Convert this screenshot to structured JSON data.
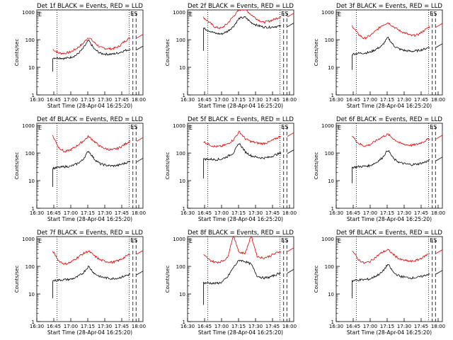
{
  "figure": {
    "xlabel": "Start Time (28-Apr-04 16:25:20)",
    "ylabel": "Counts/sec"
  },
  "chart_data": [
    {
      "type": "line",
      "title": "Det 1f BLACK = Events, RED = LLD",
      "x_ticks": [
        "16:30",
        "16:45",
        "17:00",
        "17:15",
        "17:30",
        "17:45",
        "18:00"
      ],
      "y_ticks": [
        "1",
        "10",
        "100",
        "1000"
      ],
      "yscale": "log",
      "ylim": [
        1,
        1200
      ],
      "markers": [
        "E",
        "ES"
      ],
      "series": [
        {
          "color": "#e00000",
          "values": [
            45,
            33,
            32,
            36,
            48,
            70,
            125,
            78,
            52,
            48,
            47,
            55,
            85,
            120
          ]
        },
        {
          "color": "#000000",
          "values": [
            22,
            22,
            21,
            23,
            28,
            45,
            95,
            45,
            32,
            30,
            30,
            33,
            40,
            45
          ],
          "start_drop": 7
        }
      ]
    },
    {
      "type": "line",
      "title": "Det 2f BLACK = Events, RED = LLD",
      "x_ticks": [
        "16:30",
        "16:45",
        "17:00",
        "17:15",
        "17:30",
        "17:45",
        "18:00"
      ],
      "y_ticks": [
        "1",
        "10",
        "100",
        "1000"
      ],
      "yscale": "log",
      "ylim": [
        1,
        1200
      ],
      "markers": [
        "E",
        "ES"
      ],
      "series": [
        {
          "color": "#e00000",
          "values": [
            640,
            420,
            280,
            260,
            380,
            700,
            1200,
            1300,
            800,
            560,
            420,
            470,
            560,
            700
          ]
        },
        {
          "color": "#000000",
          "values": [
            260,
            210,
            170,
            160,
            200,
            300,
            600,
            650,
            420,
            330,
            290,
            280,
            300,
            310
          ],
          "start_drop": 40
        }
      ]
    },
    {
      "type": "line",
      "title": "Det 3f BLACK = Events, RED = LLD",
      "x_ticks": [
        "16:30",
        "16:45",
        "17:00",
        "17:15",
        "17:30",
        "17:45",
        "18:00"
      ],
      "y_ticks": [
        "1",
        "10",
        "100",
        "1000"
      ],
      "yscale": "log",
      "ylim": [
        1,
        1200
      ],
      "markers": [
        "E",
        "ES"
      ],
      "series": [
        {
          "color": "#e00000",
          "values": [
            320,
            160,
            110,
            140,
            210,
            330,
            420,
            290,
            210,
            170,
            140,
            150,
            210,
            300
          ]
        },
        {
          "color": "#000000",
          "values": [
            30,
            32,
            33,
            35,
            45,
            60,
            120,
            60,
            45,
            40,
            38,
            40,
            45,
            55
          ],
          "start_drop": 8
        }
      ]
    },
    {
      "type": "line",
      "title": "Det 4f BLACK = Events, RED = LLD",
      "x_ticks": [
        "16:30",
        "16:45",
        "17:00",
        "17:15",
        "17:30",
        "17:45",
        "18:00"
      ],
      "y_ticks": [
        "1",
        "10",
        "100",
        "1000"
      ],
      "yscale": "log",
      "ylim": [
        1,
        1200
      ],
      "markers": [
        "E",
        "ES"
      ],
      "series": [
        {
          "color": "#e00000",
          "values": [
            420,
            160,
            110,
            130,
            180,
            260,
            400,
            260,
            170,
            140,
            130,
            150,
            200,
            280
          ]
        },
        {
          "color": "#000000",
          "values": [
            28,
            30,
            32,
            33,
            40,
            55,
            120,
            60,
            40,
            36,
            34,
            36,
            42,
            50
          ],
          "start_drop": 6
        }
      ]
    },
    {
      "type": "line",
      "title": "Det 5f BLACK = Events, RED = LLD",
      "x_ticks": [
        "16:30",
        "16:45",
        "17:00",
        "17:15",
        "17:30",
        "17:45",
        "18:00"
      ],
      "y_ticks": [
        "1",
        "10",
        "100",
        "1000"
      ],
      "yscale": "log",
      "ylim": [
        1,
        1200
      ],
      "markers": [
        "E",
        "ES"
      ],
      "series": [
        {
          "color": "#e00000",
          "values": [
            260,
            200,
            170,
            175,
            210,
            300,
            600,
            330,
            260,
            230,
            220,
            250,
            320,
            420
          ]
        },
        {
          "color": "#000000",
          "values": [
            60,
            60,
            58,
            60,
            75,
            100,
            230,
            110,
            80,
            70,
            66,
            70,
            85,
            100
          ],
          "start_drop": 12
        }
      ]
    },
    {
      "type": "line",
      "title": "Det 6f BLACK = Events, RED = LLD",
      "x_ticks": [
        "16:30",
        "16:45",
        "17:00",
        "17:15",
        "17:30",
        "17:45",
        "18:00"
      ],
      "y_ticks": [
        "1",
        "10",
        "100",
        "1000"
      ],
      "yscale": "log",
      "ylim": [
        1,
        1200
      ],
      "markers": [
        "E",
        "ES"
      ],
      "series": [
        {
          "color": "#e00000",
          "values": [
            420,
            230,
            180,
            200,
            280,
            380,
            480,
            320,
            230,
            200,
            190,
            210,
            260,
            340
          ]
        },
        {
          "color": "#000000",
          "values": [
            30,
            32,
            33,
            35,
            45,
            65,
            130,
            60,
            45,
            40,
            38,
            40,
            45,
            55
          ],
          "start_drop": 8
        }
      ]
    },
    {
      "type": "line",
      "title": "Det 7f BLACK = Events, RED = LLD",
      "x_ticks": [
        "16:30",
        "16:45",
        "17:00",
        "17:15",
        "17:30",
        "17:45",
        "18:00"
      ],
      "y_ticks": [
        "1",
        "10",
        "100",
        "1000"
      ],
      "yscale": "log",
      "ylim": [
        1,
        1200
      ],
      "markers": [
        "E",
        "ES"
      ],
      "series": [
        {
          "color": "#e00000",
          "values": [
            360,
            160,
            120,
            140,
            200,
            280,
            360,
            240,
            170,
            150,
            140,
            160,
            210,
            290
          ]
        },
        {
          "color": "#000000",
          "values": [
            30,
            32,
            33,
            34,
            40,
            55,
            100,
            55,
            42,
            38,
            36,
            38,
            44,
            52
          ],
          "start_drop": 7
        }
      ]
    },
    {
      "type": "line",
      "title": "Det 8f BLACK = Events, RED = LLD",
      "x_ticks": [
        "16:30",
        "16:45",
        "17:00",
        "17:15",
        "17:30",
        "17:45",
        "18:00"
      ],
      "y_ticks": [
        "1",
        "10",
        "100",
        "1000"
      ],
      "yscale": "log",
      "ylim": [
        1,
        1200
      ],
      "markers": [
        "E",
        "ES"
      ],
      "series": [
        {
          "color": "#e00000",
          "values": [
            260,
            170,
            140,
            150,
            200,
            1300,
            320,
            300,
            1300,
            230,
            200,
            230,
            290,
            360
          ]
        },
        {
          "color": "#000000",
          "values": [
            25,
            25,
            24,
            26,
            40,
            90,
            170,
            150,
            120,
            45,
            38,
            40,
            48,
            60
          ],
          "start_drop": 4
        }
      ]
    },
    {
      "type": "line",
      "title": "Det 9f BLACK = Events, RED = LLD",
      "x_ticks": [
        "16:30",
        "16:45",
        "17:00",
        "17:15",
        "17:30",
        "17:45",
        "18:00"
      ],
      "y_ticks": [
        "1",
        "10",
        "100",
        "1000"
      ],
      "yscale": "log",
      "ylim": [
        1,
        1200
      ],
      "markers": [
        "E",
        "ES"
      ],
      "series": [
        {
          "color": "#e00000",
          "values": [
            380,
            180,
            130,
            150,
            220,
            320,
            400,
            260,
            180,
            160,
            150,
            170,
            220,
            310
          ]
        },
        {
          "color": "#000000",
          "values": [
            30,
            32,
            33,
            35,
            45,
            60,
            120,
            58,
            44,
            40,
            38,
            40,
            45,
            55
          ],
          "start_drop": 7
        }
      ]
    }
  ]
}
